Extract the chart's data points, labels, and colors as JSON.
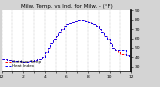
{
  "title": "Milw. Temp. vs Ind. for Milw. - (°F)",
  "bg_color": "#d4d4d4",
  "plot_bg_color": "#ffffff",
  "grid_color": "#888888",
  "temp_color": "#ff0000",
  "heat_color": "#0000ff",
  "ylim": [
    25,
    90
  ],
  "xlim": [
    0,
    288
  ],
  "ytick_vals": [
    30,
    40,
    50,
    60,
    70,
    80,
    90
  ],
  "ytick_labels": [
    "30",
    "40",
    "50",
    "60",
    "70",
    "80",
    "90"
  ],
  "xtick_positions": [
    0,
    24,
    48,
    72,
    96,
    120,
    144,
    168,
    192,
    216,
    240,
    264,
    288
  ],
  "xtick_labels": [
    "12",
    "",
    "2",
    "",
    "4",
    "",
    "6",
    "",
    "8",
    "",
    "10",
    "",
    "12"
  ],
  "temp_x": [
    0,
    6,
    12,
    18,
    24,
    30,
    36,
    42,
    48,
    54,
    60,
    66,
    72,
    78,
    84,
    90,
    96,
    102,
    108,
    114,
    120,
    126,
    132,
    138,
    144,
    150,
    156,
    162,
    168,
    174,
    180,
    186,
    192,
    198,
    204,
    210,
    216,
    222,
    228,
    234,
    240,
    246,
    252,
    258,
    264,
    270,
    276,
    282,
    288
  ],
  "temp_y": [
    38,
    38,
    37,
    37,
    36,
    36,
    36,
    35,
    35,
    35,
    36,
    36,
    37,
    38,
    38,
    40,
    46,
    50,
    55,
    60,
    63,
    67,
    70,
    73,
    75,
    77,
    78,
    79,
    80,
    80,
    80,
    79,
    78,
    77,
    75,
    73,
    70,
    67,
    63,
    60,
    55,
    50,
    48,
    46,
    44,
    43,
    42,
    41,
    40
  ],
  "heat_x": [
    0,
    6,
    12,
    18,
    24,
    30,
    36,
    42,
    48,
    54,
    60,
    66,
    72,
    78,
    84,
    90,
    96,
    102,
    108,
    114,
    120,
    126,
    132,
    138,
    144,
    150,
    156,
    162,
    168,
    174,
    180,
    186,
    192,
    198,
    204,
    210,
    216,
    222,
    228,
    234,
    240,
    246,
    252,
    258,
    264,
    270,
    276,
    282,
    288
  ],
  "heat_y": [
    38,
    38,
    37,
    37,
    36,
    36,
    36,
    35,
    35,
    35,
    36,
    36,
    37,
    38,
    38,
    40,
    46,
    50,
    55,
    60,
    63,
    67,
    70,
    73,
    75,
    77,
    78,
    79,
    80,
    80,
    80,
    79,
    78,
    77,
    75,
    73,
    70,
    67,
    63,
    60,
    55,
    50,
    48,
    48,
    48,
    48,
    42,
    41,
    40
  ],
  "legend_labels": [
    "Outdoor Temp",
    "Heat Index"
  ],
  "title_fontsize": 4.0,
  "tick_fontsize": 3.2,
  "legend_fontsize": 3.0,
  "linewidth": 0.7,
  "vgrid_positions": [
    0,
    24,
    48,
    72,
    96,
    120,
    144,
    168,
    192,
    216,
    240,
    264,
    288
  ]
}
